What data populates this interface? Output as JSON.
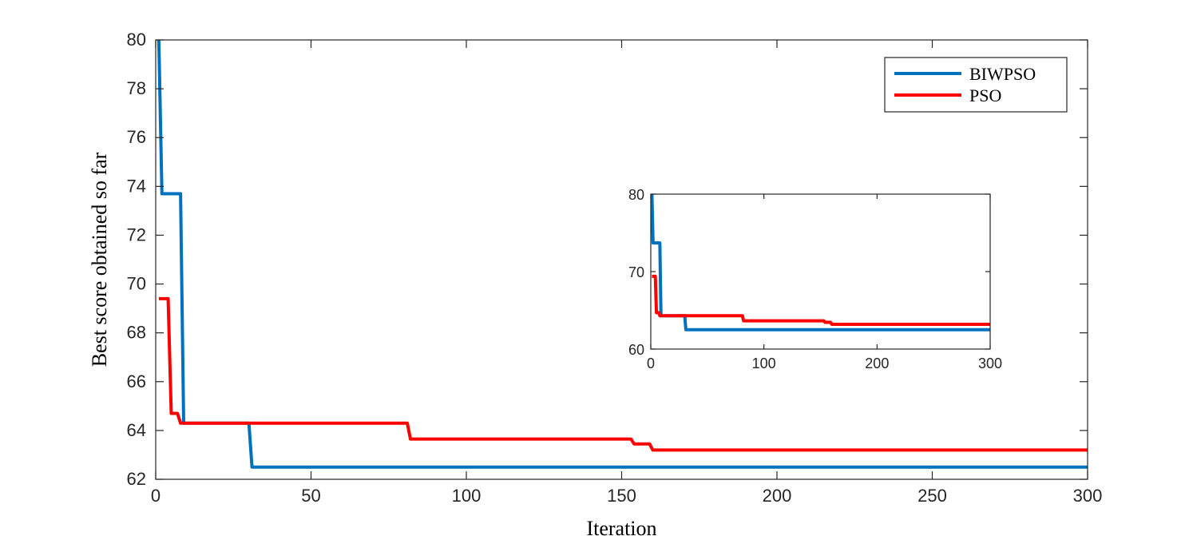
{
  "chart_data": [
    {
      "type": "line",
      "x_label": "Iteration",
      "y_label": "Best score obtained so far",
      "xlim": [
        0,
        300
      ],
      "ylim": [
        62,
        80
      ],
      "xticks": [
        0,
        50,
        100,
        150,
        200,
        250,
        300
      ],
      "yticks": [
        62,
        64,
        66,
        68,
        70,
        72,
        74,
        76,
        78,
        80
      ],
      "legend": "upper right",
      "series": [
        {
          "name": "BIWPSO",
          "color": "#0072bd",
          "x": [
            1,
            2,
            8,
            9,
            30,
            31,
            300
          ],
          "values": [
            80,
            73.7,
            73.7,
            64.3,
            64.3,
            62.5,
            62.5
          ]
        },
        {
          "name": "PSO",
          "color": "#ff0000",
          "x": [
            1,
            4,
            5,
            7,
            8,
            81,
            82,
            153,
            154,
            159,
            160,
            300
          ],
          "values": [
            69.4,
            69.4,
            64.7,
            64.7,
            64.3,
            64.3,
            63.65,
            63.65,
            63.45,
            63.45,
            63.2,
            63.2
          ]
        }
      ]
    },
    {
      "type": "line",
      "xlim": [
        0,
        300
      ],
      "ylim": [
        60,
        80
      ],
      "xticks": [
        0,
        100,
        200,
        300
      ],
      "yticks": [
        60,
        70,
        80
      ],
      "series": [
        {
          "color": "#0072bd",
          "x": [
            1,
            2,
            8,
            9,
            30,
            31,
            300
          ],
          "values": [
            80,
            73.7,
            73.7,
            64.3,
            64.3,
            62.5,
            62.5
          ]
        },
        {
          "color": "#ff0000",
          "x": [
            1,
            4,
            5,
            7,
            8,
            81,
            82,
            153,
            154,
            159,
            160,
            300
          ],
          "values": [
            69.4,
            69.4,
            64.7,
            64.7,
            64.3,
            64.3,
            63.65,
            63.65,
            63.45,
            63.45,
            63.2,
            63.2
          ]
        }
      ]
    }
  ]
}
